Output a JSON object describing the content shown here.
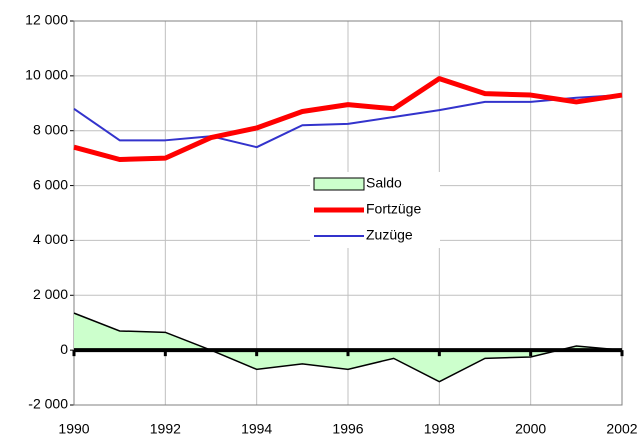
{
  "chart_data": {
    "type": "line",
    "x": [
      1990,
      1991,
      1992,
      1993,
      1994,
      1995,
      1996,
      1997,
      1998,
      1999,
      2000,
      2001,
      2002
    ],
    "series": [
      {
        "name": "Saldo",
        "color": "#ccffcc",
        "values": [
          1350,
          700,
          650,
          0,
          -700,
          -500,
          -700,
          -300,
          -1150,
          -300,
          -250,
          150,
          0
        ]
      },
      {
        "name": "Fortzüge",
        "color": "#ff0000",
        "values": [
          7400,
          6950,
          7000,
          7750,
          8100,
          8700,
          8950,
          8800,
          9900,
          9350,
          9300,
          9050,
          9300
        ]
      },
      {
        "name": "Zuzüge",
        "color": "#3333cc",
        "values": [
          8800,
          7650,
          7650,
          7800,
          7400,
          8200,
          8250,
          8500,
          8750,
          9050,
          9050,
          9200,
          9300
        ]
      }
    ],
    "xlim": [
      1990,
      2002
    ],
    "xticks": [
      1990,
      1992,
      1994,
      1996,
      1998,
      2000,
      2002
    ],
    "ylim": [
      -2000,
      12000
    ],
    "yticks": [
      {
        "value": -2000,
        "label": "-2 000"
      },
      0,
      {
        "value": 2000,
        "label": "2 000"
      },
      {
        "value": 4000,
        "label": "4 000"
      },
      {
        "value": 6000,
        "label": "6 000"
      },
      {
        "value": 8000,
        "label": "8 000"
      },
      {
        "value": 10000,
        "label": "10 000"
      },
      {
        "value": 12000,
        "label": "12 000"
      }
    ],
    "grid": true,
    "legend": "center"
  }
}
